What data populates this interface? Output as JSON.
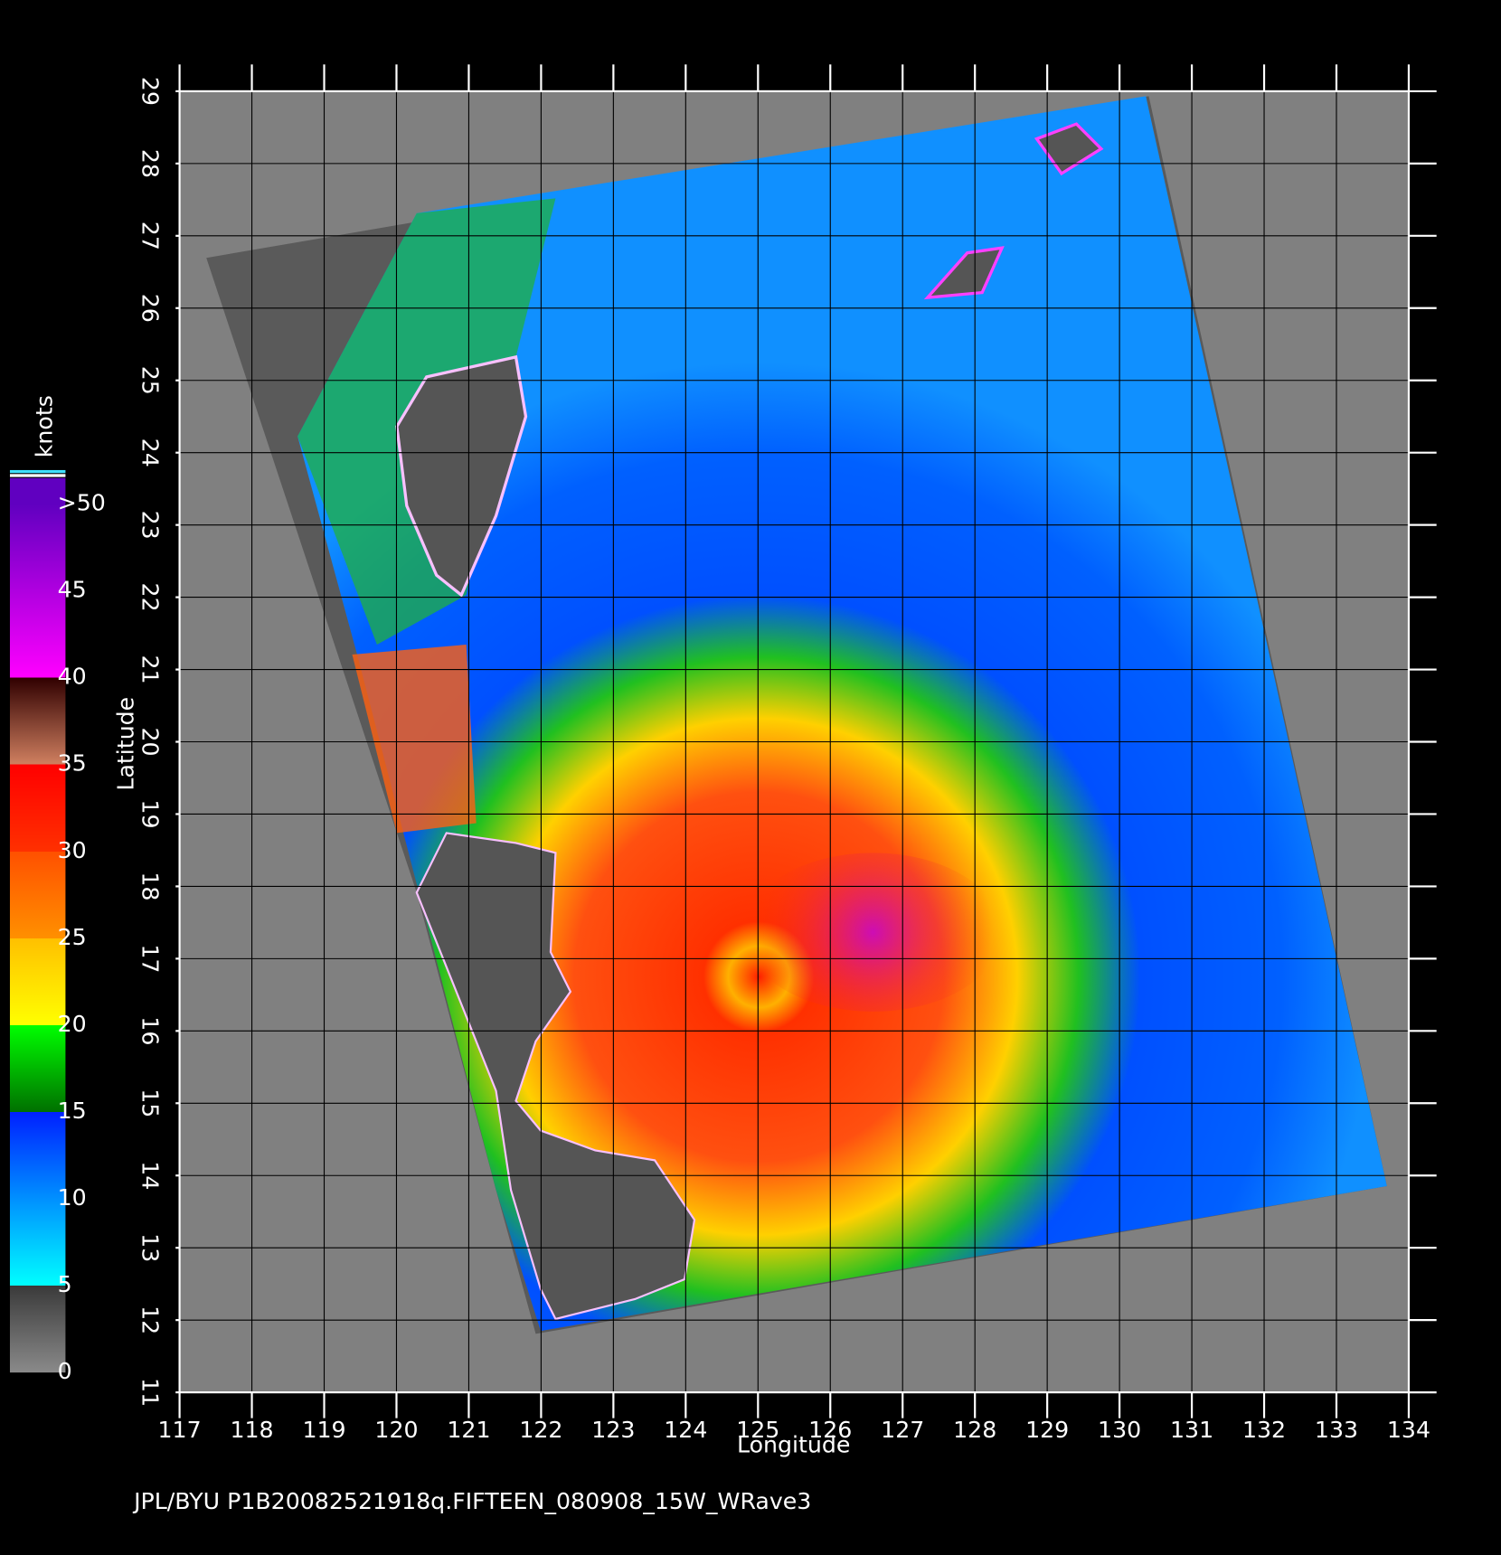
{
  "chart_data": {
    "type": "map",
    "xlabel": "Longitude",
    "ylabel": "Latitude",
    "xlim": [
      117,
      134
    ],
    "ylim": [
      11,
      29
    ],
    "xticks": [
      117,
      118,
      119,
      120,
      121,
      122,
      123,
      124,
      125,
      126,
      127,
      128,
      129,
      130,
      131,
      132,
      133,
      134
    ],
    "yticks": [
      11,
      12,
      13,
      14,
      15,
      16,
      17,
      18,
      19,
      20,
      21,
      22,
      23,
      24,
      25,
      26,
      27,
      28,
      29
    ],
    "grid": true,
    "colorbar": {
      "label": "knots",
      "lim": [
        0,
        51.5
      ],
      "ticks": [
        0,
        5,
        10,
        15,
        20,
        25,
        30,
        35,
        40,
        45,
        {
          "value": 50,
          "label": ">50"
        }
      ],
      "stops": [
        {
          "value": 0,
          "color": "#8a8a8a"
        },
        {
          "value": 5,
          "color": "#3a3a3a"
        },
        {
          "value": 5,
          "color": "#00ffff"
        },
        {
          "value": 10,
          "color": "#0090ff"
        },
        {
          "value": 15,
          "color": "#0020ff"
        },
        {
          "value": 15,
          "color": "#007000"
        },
        {
          "value": 20,
          "color": "#00ff00"
        },
        {
          "value": 20,
          "color": "#ffff00"
        },
        {
          "value": 25,
          "color": "#ffc000"
        },
        {
          "value": 25,
          "color": "#ff9000"
        },
        {
          "value": 30,
          "color": "#ff5000"
        },
        {
          "value": 30,
          "color": "#ff3000"
        },
        {
          "value": 35,
          "color": "#ff0000"
        },
        {
          "value": 35,
          "color": "#d08060"
        },
        {
          "value": 40,
          "color": "#300000"
        },
        {
          "value": 40,
          "color": "#ff00ff"
        },
        {
          "value": 50,
          "color": "#6000c0"
        }
      ]
    },
    "footer": "JPL/BYU  P1B20082521918q.FIFTEEN_080908_15W_WRave3"
  }
}
